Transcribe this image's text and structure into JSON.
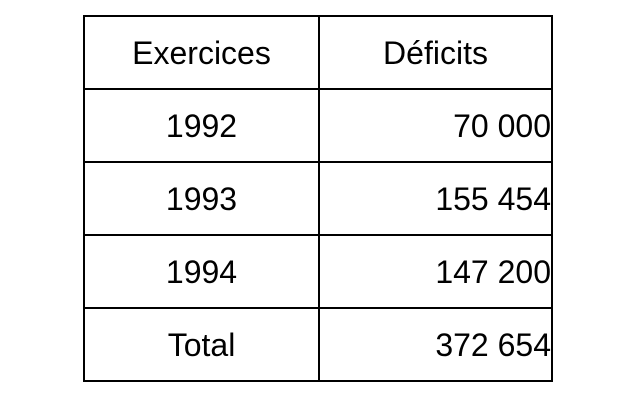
{
  "table": {
    "headers": [
      "Exercices",
      "Déficits"
    ],
    "rows": [
      {
        "exercice": "1992",
        "deficit": "70 000"
      },
      {
        "exercice": "1993",
        "deficit": "155 454"
      },
      {
        "exercice": "1994",
        "deficit": "147 200"
      },
      {
        "exercice": "Total",
        "deficit": "372 654"
      }
    ]
  }
}
